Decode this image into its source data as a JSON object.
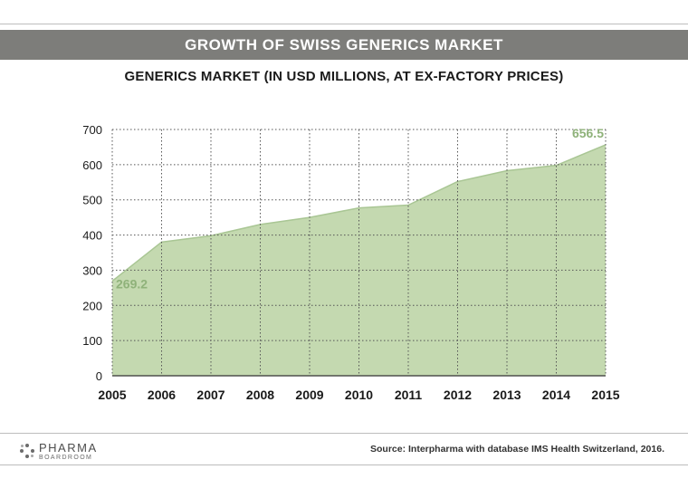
{
  "header": {
    "title": "GROWTH OF SWISS GENERICS MARKET"
  },
  "chart_data": {
    "type": "area",
    "title": "GENERICS MARKET (IN USD MILLIONS, AT EX-FACTORY PRICES)",
    "xlabel": "",
    "ylabel": "",
    "categories": [
      "2005",
      "2006",
      "2007",
      "2008",
      "2009",
      "2010",
      "2011",
      "2012",
      "2013",
      "2014",
      "2015"
    ],
    "values": [
      269.2,
      380,
      398,
      430,
      450,
      477,
      485,
      552,
      583,
      598,
      656.5
    ],
    "y_ticks": [
      0,
      100,
      200,
      300,
      400,
      500,
      600,
      700
    ],
    "ylim": [
      0,
      700
    ],
    "grid": true,
    "grid_style": "dotted",
    "annotations": [
      {
        "category": "2005",
        "text": "269.2"
      },
      {
        "category": "2015",
        "text": "656.5"
      }
    ],
    "colors": {
      "fill": "#c4d9b0",
      "line": "#a9c694",
      "annotation": "#8fb27a",
      "grid": "#555555"
    }
  },
  "footer": {
    "logo_main": "PHARMA",
    "logo_sub": "BOARDROOM",
    "source": "Source: Interpharma with database IMS Health Switzerland, 2016."
  }
}
